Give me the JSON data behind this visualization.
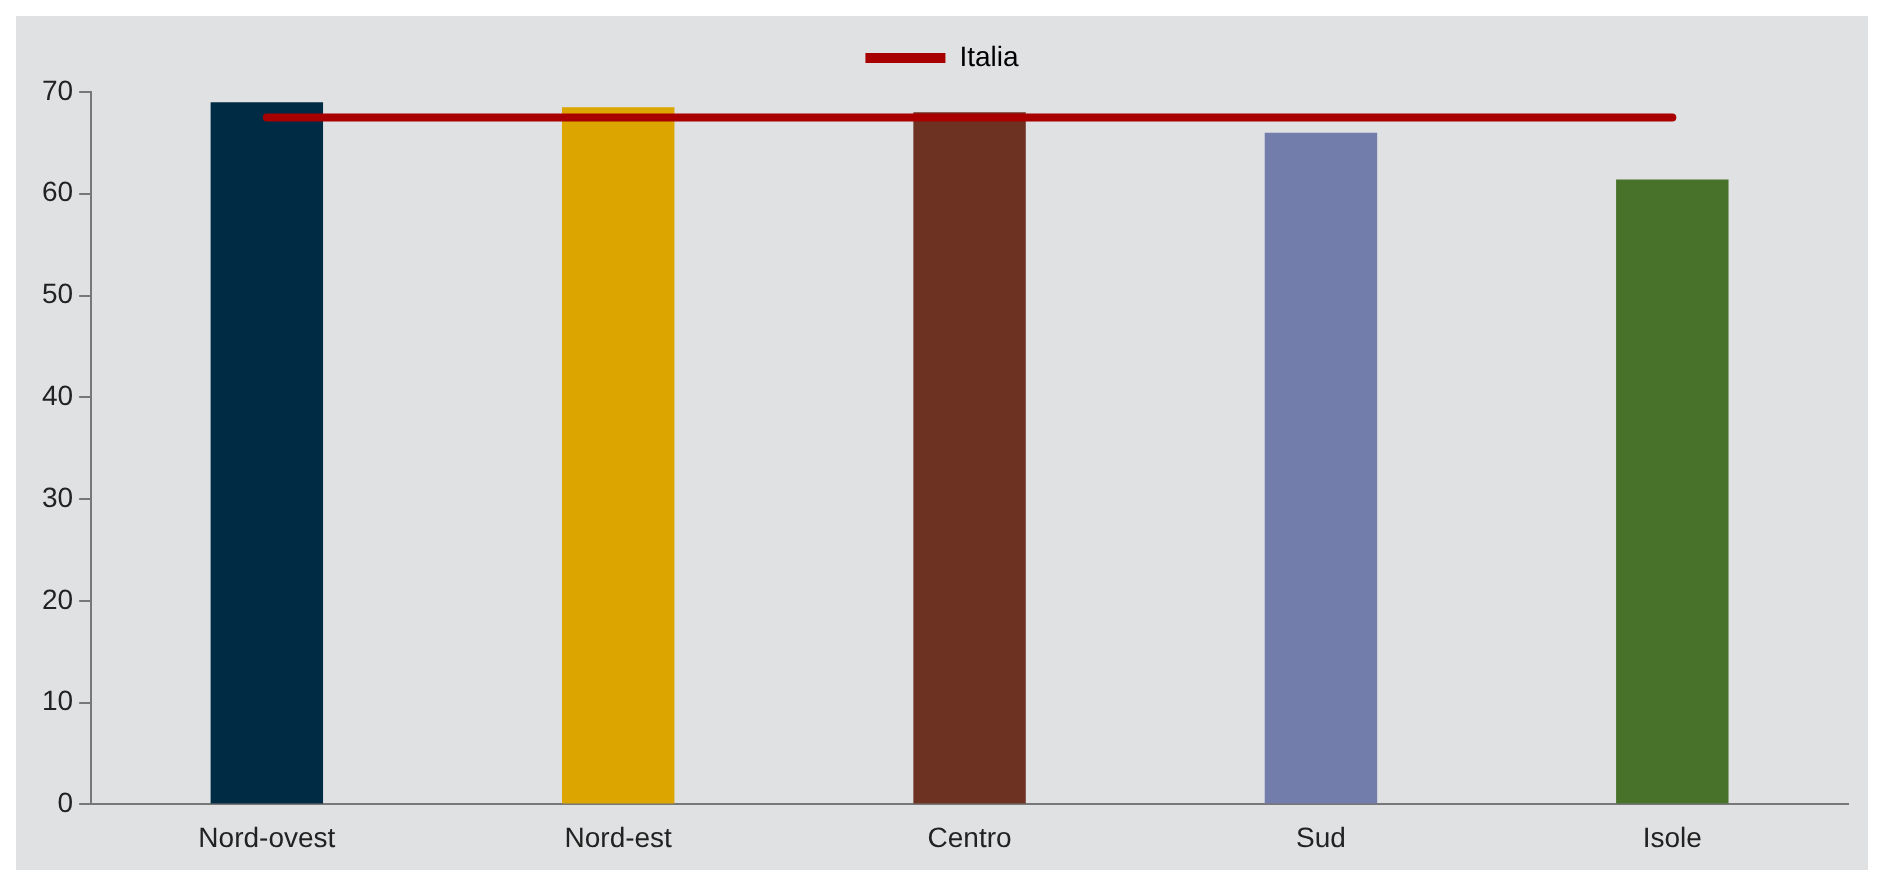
{
  "chart_data": {
    "type": "bar",
    "categories": [
      "Nord-ovest",
      "Nord-est",
      "Centro",
      "Sud",
      "Isole"
    ],
    "series": [
      {
        "colors": [
          "#002b45",
          "#dca500",
          "#6e3222",
          "#737dab",
          "#487229"
        ],
        "values": [
          69.0,
          68.5,
          68.0,
          66.0,
          61.4
        ]
      },
      {
        "type": "line",
        "name": "Italia",
        "color": "#a80000",
        "values": [
          67.5,
          67.5,
          67.5,
          67.5,
          67.5
        ]
      }
    ],
    "ylim": [
      0,
      70
    ],
    "yticks": [
      0,
      10,
      20,
      30,
      40,
      50,
      60,
      70
    ],
    "grid": false,
    "legend": "top",
    "marker": "none"
  }
}
